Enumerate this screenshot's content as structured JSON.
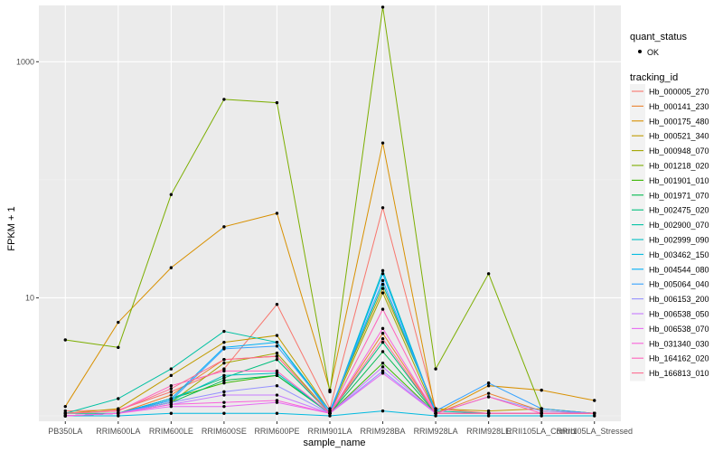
{
  "chart_data": {
    "type": "line",
    "title": "",
    "xlabel": "sample_name",
    "ylabel": "FPKM + 1",
    "y_scale": "log10",
    "ylim": [
      0.9,
      3000
    ],
    "grid": true,
    "legend_position": "right",
    "y_ticks": [
      10,
      1000
    ],
    "y_tick_labels": [
      "10",
      "1000"
    ],
    "categories": [
      "PB350LA",
      "RRIM600LA",
      "RRIM600LE",
      "RRIM600SE",
      "RRIM600PE",
      "RRIM901LA",
      "RRIM928BA",
      "RRIM928LA",
      "RRIM928LE",
      "RRII105LA_Control",
      "RRII105LA_Stressed"
    ],
    "quant_legend": {
      "title": "quant_status",
      "label": "OK"
    },
    "series_legend_title": "tracking_id",
    "series": [
      {
        "name": "Hb_000005_270",
        "color": "#F8766D",
        "values": [
          1.1,
          1.12,
          1.6,
          2.5,
          8.8,
          1.15,
          58.0,
          1.15,
          1.05,
          1.05,
          1.05
        ]
      },
      {
        "name": "Hb_000141_230",
        "color": "#EA8331",
        "values": [
          1.0,
          1.05,
          1.5,
          3.0,
          3.2,
          1.05,
          5.0,
          1.05,
          1.55,
          1.1,
          1.05
        ]
      },
      {
        "name": "Hb_000175_480",
        "color": "#D89000",
        "values": [
          1.2,
          6.2,
          18.0,
          40.0,
          52.0,
          1.65,
          205.0,
          1.05,
          1.8,
          1.65,
          1.35
        ]
      },
      {
        "name": "Hb_000521_340",
        "color": "#C09B00",
        "values": [
          1.05,
          1.15,
          2.2,
          4.2,
          4.8,
          1.1,
          12.0,
          1.15,
          1.1,
          1.15,
          1.05
        ]
      },
      {
        "name": "Hb_000948_070",
        "color": "#A3A500",
        "values": [
          1.0,
          1.05,
          1.3,
          2.8,
          3.4,
          1.05,
          11.0,
          1.05,
          1.05,
          1.05,
          1.05
        ]
      },
      {
        "name": "Hb_001218_020",
        "color": "#7CAE00",
        "values": [
          4.4,
          3.8,
          75.0,
          480.0,
          450.0,
          1.6,
          2900.0,
          2.5,
          16.0,
          1.15,
          1.05
        ]
      },
      {
        "name": "Hb_001901_010",
        "color": "#39B600",
        "values": [
          1.0,
          1.05,
          1.4,
          1.9,
          2.2,
          1.05,
          2.8,
          1.05,
          1.05,
          1.05,
          1.05
        ]
      },
      {
        "name": "Hb_001971_070",
        "color": "#00BB4E",
        "values": [
          1.0,
          1.05,
          1.3,
          2.0,
          2.2,
          1.05,
          3.5,
          1.05,
          1.05,
          1.05,
          1.05
        ]
      },
      {
        "name": "Hb_002475_020",
        "color": "#00BF7D",
        "values": [
          1.05,
          1.05,
          1.4,
          2.1,
          3.0,
          1.05,
          4.2,
          1.05,
          1.05,
          1.05,
          1.05
        ]
      },
      {
        "name": "Hb_002900_070",
        "color": "#00C1A3",
        "values": [
          1.05,
          1.4,
          2.5,
          5.2,
          4.2,
          1.1,
          13.0,
          1.1,
          1.05,
          1.05,
          1.05
        ]
      },
      {
        "name": "Hb_002999_090",
        "color": "#00BFC4",
        "values": [
          1.0,
          1.05,
          1.35,
          2.2,
          2.3,
          1.05,
          17.0,
          1.05,
          1.05,
          1.05,
          1.05
        ]
      },
      {
        "name": "Hb_003462_150",
        "color": "#00BAE0",
        "values": [
          1.0,
          1.0,
          1.05,
          1.05,
          1.05,
          1.0,
          1.1,
          1.0,
          1.0,
          1.0,
          1.0
        ]
      },
      {
        "name": "Hb_004544_080",
        "color": "#00B0F6",
        "values": [
          1.0,
          1.05,
          1.4,
          3.8,
          4.2,
          1.05,
          16.0,
          1.05,
          1.05,
          1.05,
          1.05
        ]
      },
      {
        "name": "Hb_005064_040",
        "color": "#35A2FF",
        "values": [
          1.0,
          1.05,
          1.35,
          3.7,
          3.9,
          1.1,
          14.0,
          1.1,
          1.9,
          1.15,
          1.05
        ]
      },
      {
        "name": "Hb_006153_200",
        "color": "#9590FF",
        "values": [
          1.0,
          1.05,
          1.3,
          1.6,
          1.8,
          1.05,
          2.4,
          1.05,
          1.45,
          1.1,
          1.05
        ]
      },
      {
        "name": "Hb_006538_050",
        "color": "#C77CFF",
        "values": [
          1.0,
          1.05,
          1.25,
          1.5,
          1.5,
          1.05,
          2.6,
          1.05,
          1.05,
          1.05,
          1.05
        ]
      },
      {
        "name": "Hb_006538_070",
        "color": "#E76BF3",
        "values": [
          1.0,
          1.05,
          1.2,
          1.2,
          1.3,
          1.05,
          2.3,
          1.05,
          1.05,
          1.05,
          1.05
        ]
      },
      {
        "name": "Hb_031340_030",
        "color": "#FA62DB",
        "values": [
          1.0,
          1.05,
          1.25,
          1.3,
          1.35,
          1.05,
          5.5,
          1.05,
          1.05,
          1.05,
          1.05
        ]
      },
      {
        "name": "Hb_164162_020",
        "color": "#FF62BC",
        "values": [
          1.05,
          1.1,
          1.8,
          2.4,
          2.4,
          1.05,
          8.0,
          1.05,
          1.45,
          1.05,
          1.05
        ]
      },
      {
        "name": "Hb_166813_010",
        "color": "#FF6C91",
        "values": [
          1.05,
          1.1,
          1.7,
          3.0,
          3.2,
          1.05,
          4.5,
          1.05,
          1.05,
          1.05,
          1.05
        ]
      }
    ]
  }
}
